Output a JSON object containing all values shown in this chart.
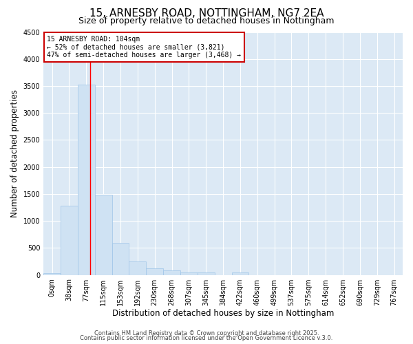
{
  "title_line1": "15, ARNESBY ROAD, NOTTINGHAM, NG7 2EA",
  "title_line2": "Size of property relative to detached houses in Nottingham",
  "xlabel": "Distribution of detached houses by size in Nottingham",
  "ylabel": "Number of detached properties",
  "bar_color": "#cfe2f3",
  "bar_edge_color": "#9fc5e8",
  "bin_labels": [
    "0sqm",
    "38sqm",
    "77sqm",
    "115sqm",
    "153sqm",
    "192sqm",
    "230sqm",
    "268sqm",
    "307sqm",
    "345sqm",
    "384sqm",
    "422sqm",
    "460sqm",
    "499sqm",
    "537sqm",
    "575sqm",
    "614sqm",
    "652sqm",
    "690sqm",
    "729sqm",
    "767sqm"
  ],
  "bar_heights": [
    30,
    1280,
    3530,
    1490,
    600,
    250,
    120,
    80,
    40,
    40,
    0,
    40,
    0,
    0,
    0,
    0,
    0,
    0,
    0,
    0,
    0
  ],
  "ylim": [
    0,
    4500
  ],
  "yticks": [
    0,
    500,
    1000,
    1500,
    2000,
    2500,
    3000,
    3500,
    4000,
    4500
  ],
  "red_line_x": 2.74,
  "annotation_text": "15 ARNESBY ROAD: 104sqm\n← 52% of detached houses are smaller (3,821)\n47% of semi-detached houses are larger (3,468) →",
  "annotation_box_color": "#ffffff",
  "annotation_box_edge_color": "#cc0000",
  "footer_line1": "Contains HM Land Registry data © Crown copyright and database right 2025.",
  "footer_line2": "Contains public sector information licensed under the Open Government Licence v.3.0.",
  "fig_background_color": "#ffffff",
  "plot_background_color": "#dce9f5",
  "grid_color": "#ffffff",
  "title_fontsize": 11,
  "subtitle_fontsize": 9,
  "axis_label_fontsize": 8.5,
  "tick_fontsize": 7,
  "annotation_fontsize": 7,
  "footer_fontsize": 6
}
